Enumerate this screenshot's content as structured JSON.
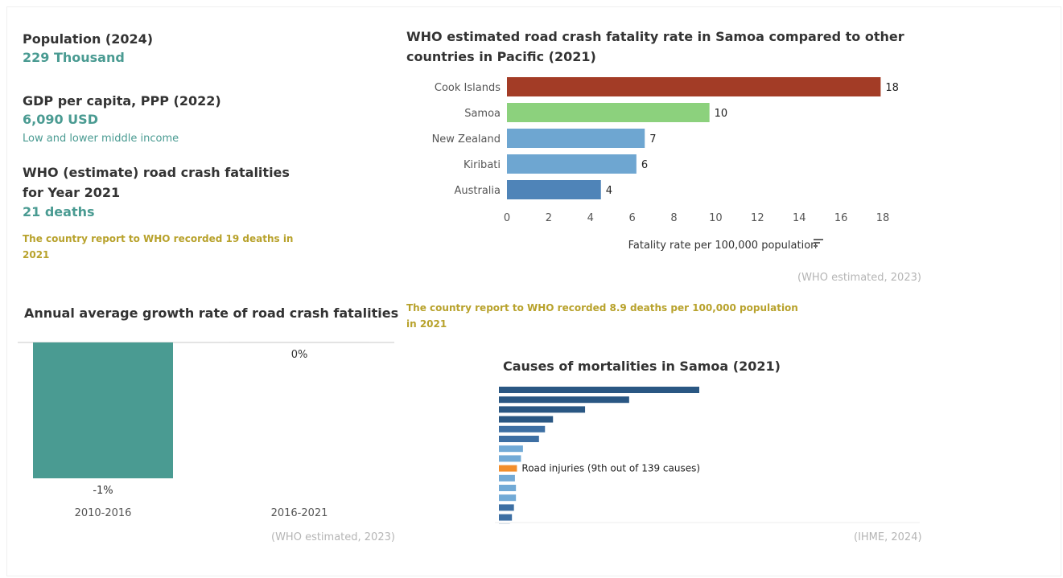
{
  "stats": {
    "population_label": "Population (2024)",
    "population_value": "229 Thousand",
    "gdp_label": "GDP per capita, PPP (2022)",
    "gdp_value": "6,090 USD",
    "income_group": "Low and lower middle income",
    "who_label_line1": "WHO (estimate) road crash fatalities",
    "who_label_line2": "for Year 2021",
    "who_value": "21 deaths",
    "country_report_line1": "The country report to WHO recorded 19 deaths in",
    "country_report_line2": "2021"
  },
  "fatality_rate_chart": {
    "title_line1": "WHO estimated road crash fatality rate in Samoa compared to other",
    "title_line2": "countries in Pacific (2021)",
    "source": "(WHO estimated, 2023)",
    "note_line1": "The country report to WHO recorded 8.9 deaths per 100,000 population",
    "note_line2": "in 2021"
  },
  "growth_chart": {
    "title": "Annual average growth rate of road crash fatalities",
    "source": "(WHO estimated, 2023)"
  },
  "causes_chart": {
    "title": "Causes of mortalities in Samoa (2021)",
    "annotation": "Road injuries (9th out of 139 causes)",
    "source": "(IHME, 2024)"
  },
  "chart_data": [
    {
      "type": "bar",
      "orientation": "horizontal",
      "title": "WHO estimated road crash fatality rate in Samoa compared to other countries in Pacific (2021)",
      "categories": [
        "Cook Islands",
        "Samoa",
        "New Zealand",
        "Kiribati",
        "Australia"
      ],
      "values": [
        18,
        10,
        7,
        6,
        4
      ],
      "value_labels": [
        "18",
        "10",
        "7",
        "6",
        "4"
      ],
      "x_ticks": [
        "0",
        "2",
        "4",
        "6",
        "8",
        "10",
        "12",
        "14",
        "16",
        "18"
      ],
      "xlim": [
        0,
        18
      ],
      "xlabel": "Fatality rate per 100,000 population",
      "colors": [
        "#a33c26",
        "#8cd17d",
        "#6ea6d1",
        "#6ea6d1",
        "#4f84b8"
      ],
      "values_exact_for_layout": [
        17.9,
        9.7,
        6.6,
        6.2,
        4.5
      ]
    },
    {
      "type": "bar",
      "title": "Annual average growth rate of road crash fatalities",
      "categories": [
        "2010-2016",
        "2016-2021"
      ],
      "values": [
        -1,
        0
      ],
      "value_labels": [
        "-1%",
        "0%"
      ],
      "colors": [
        "#4a9b92",
        "#4a9b92"
      ]
    },
    {
      "type": "bar",
      "orientation": "horizontal",
      "title": "Causes of mortalities in Samoa (2021)",
      "values": [
        100,
        65,
        43,
        27,
        23,
        20,
        12,
        11,
        9,
        8,
        8.5,
        8.5,
        7.5,
        6.5,
        5.5
      ],
      "highlight_index": 8,
      "highlight_label": "Road injuries (9th out of 139 causes)",
      "colors": [
        "#2a5783",
        "#2a5783",
        "#2a5783",
        "#2a5783",
        "#3d6fa3",
        "#3d6fa3",
        "#72aad6",
        "#72aad6",
        "#f28e2b",
        "#72aad6",
        "#72aad6",
        "#72aad6",
        "#3d6fa3",
        "#3d6fa3",
        "#2a5783"
      ]
    }
  ],
  "icons": {
    "sort": "sort-icon"
  }
}
